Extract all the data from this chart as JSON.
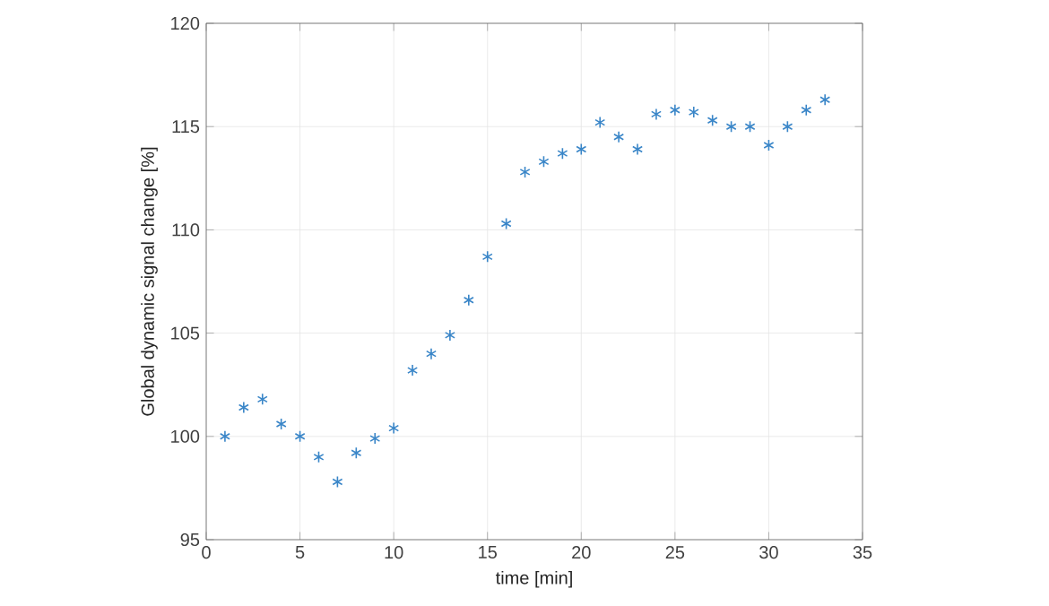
{
  "chart_data": {
    "type": "scatter",
    "xlabel": "time [min]",
    "ylabel": "Global dynamic signal change [%]",
    "x": [
      1,
      2,
      3,
      4,
      5,
      6,
      7,
      8,
      9,
      10,
      11,
      12,
      13,
      14,
      15,
      16,
      17,
      18,
      19,
      20,
      21,
      22,
      23,
      24,
      25,
      26,
      27,
      28,
      29,
      30,
      31,
      32,
      33
    ],
    "values": [
      100.0,
      101.4,
      101.8,
      100.6,
      100.0,
      99.0,
      97.8,
      99.2,
      99.9,
      100.4,
      103.2,
      104.0,
      104.9,
      106.6,
      108.7,
      110.3,
      112.8,
      113.3,
      113.7,
      113.9,
      115.2,
      114.5,
      113.9,
      115.6,
      115.8,
      115.7,
      115.3,
      115.0,
      115.0,
      114.1,
      115.0,
      115.8,
      116.3
    ],
    "color": "#3a86c8",
    "marker": "cross",
    "grid": true,
    "xlim": [
      0,
      35
    ],
    "xticks": [
      0,
      5,
      10,
      15,
      20,
      25,
      30,
      35
    ],
    "ylim": [
      95,
      120
    ],
    "yticks": [
      95,
      100,
      105,
      110,
      115,
      120
    ]
  }
}
